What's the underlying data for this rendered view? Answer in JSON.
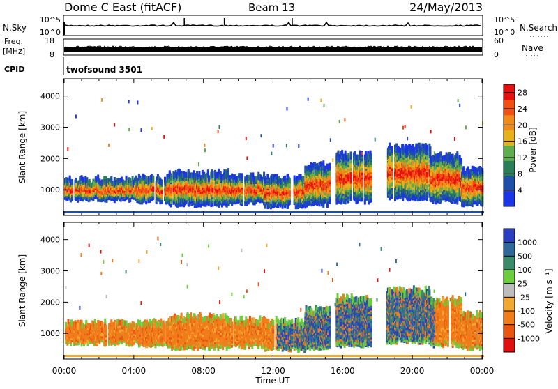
{
  "header": {
    "station": "Dome C East (fitACF)",
    "beam": "Beam 13",
    "date": "24/May/2013"
  },
  "noise_panel": {
    "left_label": "N.Sky",
    "right_label": "N.Search",
    "left_ticks": [
      "10^5",
      "10^0"
    ],
    "right_ticks": [
      "10^5",
      "10^0"
    ]
  },
  "freq_panel": {
    "left_label": "Freq.",
    "left_unit": "[MHz]",
    "right_label": "Nave",
    "left_ticks": [
      "18",
      "8"
    ],
    "right_ticks": [
      "60",
      "0"
    ]
  },
  "cpid_panel": {
    "label": "CPID",
    "program": "twofsound 3501"
  },
  "colors": {
    "noise_line": "#000000",
    "power_scale": [
      "#1a35e8",
      "#1f4fa8",
      "#2b7e5a",
      "#5fae4e",
      "#e6b21c",
      "#f08a18",
      "#f25010",
      "#e61010"
    ],
    "velocity_scale": [
      "#2a3fc0",
      "#2d6a9a",
      "#3b8a6a",
      "#6bcc3c",
      "#bdbdbd",
      "#f0a830",
      "#f07c1a",
      "#ea5510",
      "#e01010"
    ]
  },
  "chart_data": [
    {
      "type": "heatmap",
      "name": "power",
      "ylabel": "Slant Range [km]",
      "xlabel": "Time UT",
      "x_ticks": [
        "00:00",
        "04:00",
        "08:00",
        "12:00",
        "16:00",
        "20:00",
        "00:00"
      ],
      "xlim_hours": [
        0,
        24
      ],
      "y_ticks": [
        1000,
        2000,
        3000,
        4000
      ],
      "ylim": [
        180,
        4550
      ],
      "colorbar": {
        "label": "Power [dB]",
        "ticks": [
          4,
          8,
          12,
          16,
          20,
          24,
          28
        ],
        "range": [
          0,
          30
        ]
      }
    },
    {
      "type": "heatmap",
      "name": "velocity",
      "ylabel": "Slant Range [km]",
      "xlabel": "Time UT",
      "x_ticks": [
        "00:00",
        "04:00",
        "08:00",
        "12:00",
        "16:00",
        "20:00",
        "00:00"
      ],
      "xlim_hours": [
        0,
        24
      ],
      "y_ticks": [
        1000,
        2000,
        3000,
        4000
      ],
      "ylim": [
        180,
        4550
      ],
      "colorbar": {
        "label": "Velocity [m s⁻¹]",
        "ticks": [
          "1000",
          "500",
          "100",
          "25",
          "-25",
          "-100",
          "-500",
          "-1000"
        ]
      }
    }
  ],
  "x_axis_label": "Time UT"
}
